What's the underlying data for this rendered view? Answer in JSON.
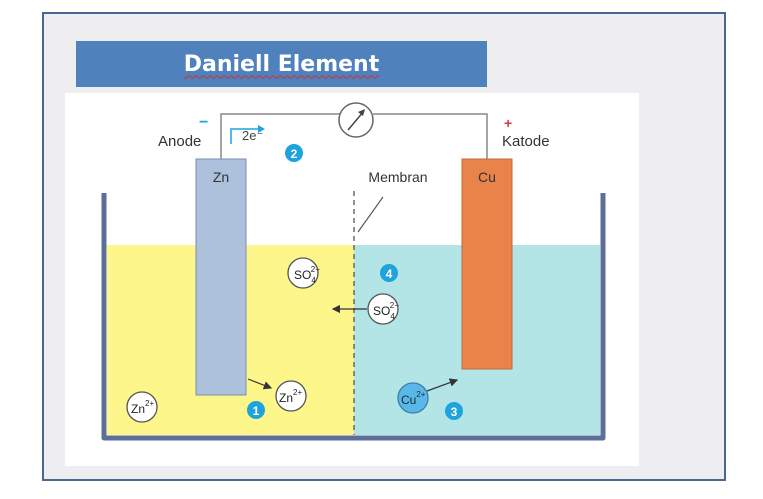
{
  "title": "Daniell Element",
  "labels": {
    "anode_sign": "−",
    "anode": "Anode",
    "cathode_sign": "+",
    "cathode": "Katode",
    "electrons": "2e⁻",
    "zn_electrode": "Zn",
    "cu_electrode": "Cu",
    "membrane": "Membran"
  },
  "ions": {
    "so4_left": {
      "base": "SO",
      "sub": "4",
      "sup": "2−"
    },
    "so4_right": {
      "base": "SO",
      "sub": "4",
      "sup": "2−"
    },
    "zn_left": {
      "base": "Zn",
      "sup": "2+"
    },
    "zn_right": {
      "base": "Zn",
      "sup": "2+"
    },
    "cu": {
      "base": "Cu",
      "sup": "2+"
    }
  },
  "steps": [
    "1",
    "2",
    "3",
    "4"
  ],
  "colors": {
    "frame_border": "#4a6591",
    "title_bg": "#4f81bd",
    "zn_solution": "#fdf68a",
    "cu_solution": "#b3e4e6",
    "zn_electrode": "#aec1dc",
    "cu_electrode": "#e8834a",
    "beaker": "#5d6e99",
    "step_badge": "#1fa3de",
    "cathode_sign": "#d63a3a",
    "cu_ion": "#5ab8e8"
  }
}
